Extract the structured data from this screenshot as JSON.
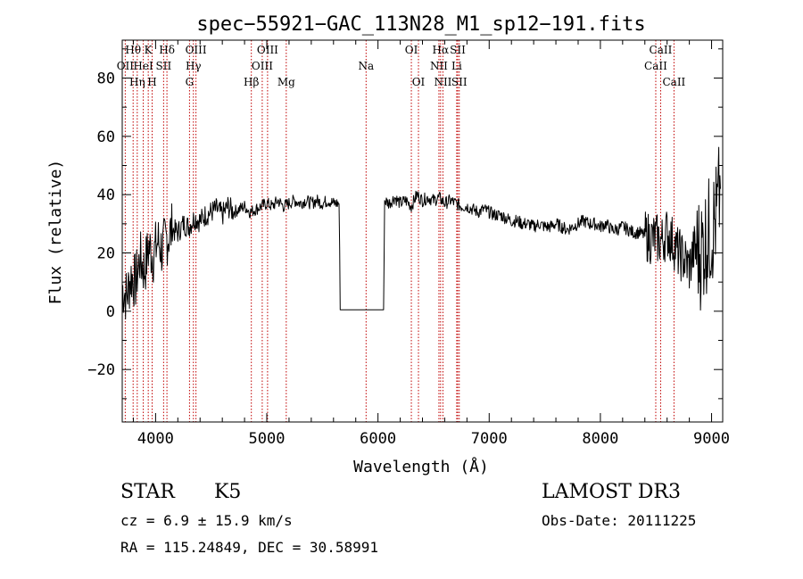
{
  "chart_data": {
    "type": "line",
    "title": "spec−55921−GAC_113N28_M1_sp12−191.fits",
    "xlabel": "Wavelength (Å)",
    "ylabel": "Flux (relative)",
    "xlim": [
      3700,
      9100
    ],
    "ylim": [
      -38,
      93
    ],
    "x_ticks": [
      {
        "value": 4000,
        "label": "4000"
      },
      {
        "value": 5000,
        "label": "5000"
      },
      {
        "value": 6000,
        "label": "6000"
      },
      {
        "value": 7000,
        "label": "7000"
      },
      {
        "value": 8000,
        "label": "8000"
      },
      {
        "value": 9000,
        "label": "9000"
      }
    ],
    "y_ticks": [
      {
        "value": -20,
        "label": "−20"
      },
      {
        "value": 0,
        "label": "0"
      },
      {
        "value": 20,
        "label": "20"
      },
      {
        "value": 40,
        "label": "40"
      },
      {
        "value": 60,
        "label": "60"
      },
      {
        "value": 80,
        "label": "80"
      }
    ],
    "series": [
      {
        "name": "flux",
        "x": [
          3700,
          3740,
          3780,
          3820,
          3860,
          3900,
          3940,
          3980,
          4020,
          4060,
          4100,
          4150,
          4200,
          4250,
          4300,
          4350,
          4400,
          4450,
          4500,
          4550,
          4600,
          4650,
          4700,
          4750,
          4800,
          4850,
          4900,
          4950,
          5000,
          5050,
          5100,
          5150,
          5200,
          5250,
          5300,
          5350,
          5400,
          5450,
          5500,
          5550,
          5600,
          5650,
          5655,
          5660,
          6050,
          6055,
          6060,
          6100,
          6150,
          6200,
          6250,
          6300,
          6350,
          6400,
          6450,
          6500,
          6550,
          6600,
          6650,
          6700,
          6750,
          6800,
          6850,
          6900,
          6950,
          7000,
          7050,
          7100,
          7150,
          7200,
          7250,
          7300,
          7350,
          7400,
          7450,
          7500,
          7550,
          7600,
          7650,
          7700,
          7750,
          7800,
          7850,
          7900,
          7950,
          8000,
          8050,
          8100,
          8150,
          8200,
          8250,
          8300,
          8350,
          8400,
          8450,
          8500,
          8550,
          8600,
          8650,
          8700,
          8750,
          8800,
          8850,
          8900,
          8950,
          9000,
          9050,
          9080
        ],
        "y": [
          8,
          5,
          12,
          10,
          18,
          14,
          22,
          19,
          24,
          21,
          25,
          28,
          27,
          30,
          29,
          32,
          31,
          33,
          34,
          35,
          33,
          36,
          34,
          35,
          36,
          34,
          35,
          36,
          37,
          36,
          38,
          36,
          37,
          38,
          37,
          38,
          37,
          38,
          37,
          38,
          37,
          37,
          20,
          0.5,
          0.5,
          20,
          38,
          37,
          39,
          37,
          38,
          36,
          40,
          38,
          39,
          38,
          39,
          37,
          38,
          37,
          36,
          36,
          35,
          34,
          35,
          34,
          33,
          33,
          32,
          31,
          31,
          30,
          30,
          29,
          30,
          29,
          29,
          30,
          29,
          28,
          29,
          30,
          31,
          30,
          30,
          29,
          30,
          28,
          28,
          29,
          28,
          27,
          27,
          26,
          25,
          25,
          24,
          27,
          24,
          20,
          18,
          15,
          22,
          20,
          25,
          28,
          33,
          42
        ]
      }
    ],
    "spectral_lines": [
      {
        "name": "Hθ",
        "wavelength": 3798,
        "row": 0
      },
      {
        "name": "OII",
        "wavelength": 3727,
        "row": 1
      },
      {
        "name": "Hη",
        "wavelength": 3835,
        "row": 2
      },
      {
        "name": "K",
        "wavelength": 3934,
        "row": 0
      },
      {
        "name": "HeI",
        "wavelength": 3889,
        "row": 1
      },
      {
        "name": "H",
        "wavelength": 3969,
        "row": 2
      },
      {
        "name": "Hδ",
        "wavelength": 4102,
        "row": 0
      },
      {
        "name": "SII",
        "wavelength": 4072,
        "row": 1
      },
      {
        "name": "OIII",
        "wavelength": 4363,
        "row": 0
      },
      {
        "name": "Hγ",
        "wavelength": 4340,
        "row": 1
      },
      {
        "name": "G",
        "wavelength": 4305,
        "row": 2
      },
      {
        "name": "Hβ",
        "wavelength": 4861,
        "row": 2
      },
      {
        "name": "OIII",
        "wavelength": 5007,
        "row": 0
      },
      {
        "name": "OIII",
        "wavelength": 4959,
        "row": 1
      },
      {
        "name": "Mg",
        "wavelength": 5175,
        "row": 2
      },
      {
        "name": "Na",
        "wavelength": 5893,
        "row": 1
      },
      {
        "name": "OI",
        "wavelength": 6300,
        "row": 0
      },
      {
        "name": "OI",
        "wavelength": 6364,
        "row": 2
      },
      {
        "name": "Hα",
        "wavelength": 6563,
        "row": 0
      },
      {
        "name": "NII",
        "wavelength": 6548,
        "row": 1
      },
      {
        "name": "NII",
        "wavelength": 6584,
        "row": 2
      },
      {
        "name": "SII",
        "wavelength": 6717,
        "row": 0
      },
      {
        "name": "Li",
        "wavelength": 6708,
        "row": 1
      },
      {
        "name": "SII",
        "wavelength": 6731,
        "row": 2
      },
      {
        "name": "CaII",
        "wavelength": 8542,
        "row": 0
      },
      {
        "name": "CaII",
        "wavelength": 8498,
        "row": 1
      },
      {
        "name": "CaII",
        "wavelength": 8662,
        "row": 2
      }
    ],
    "line_color": "#000000",
    "marker_color": "#c00000"
  },
  "info": {
    "object_class": "STAR",
    "subclass": "K5",
    "redshift": "cz = 6.9 ± 15.9 km/s",
    "coordinates": "RA = 115.24849, DEC =  30.58991",
    "survey": "LAMOST DR3",
    "obs_date": "Obs-Date: 20111225"
  }
}
